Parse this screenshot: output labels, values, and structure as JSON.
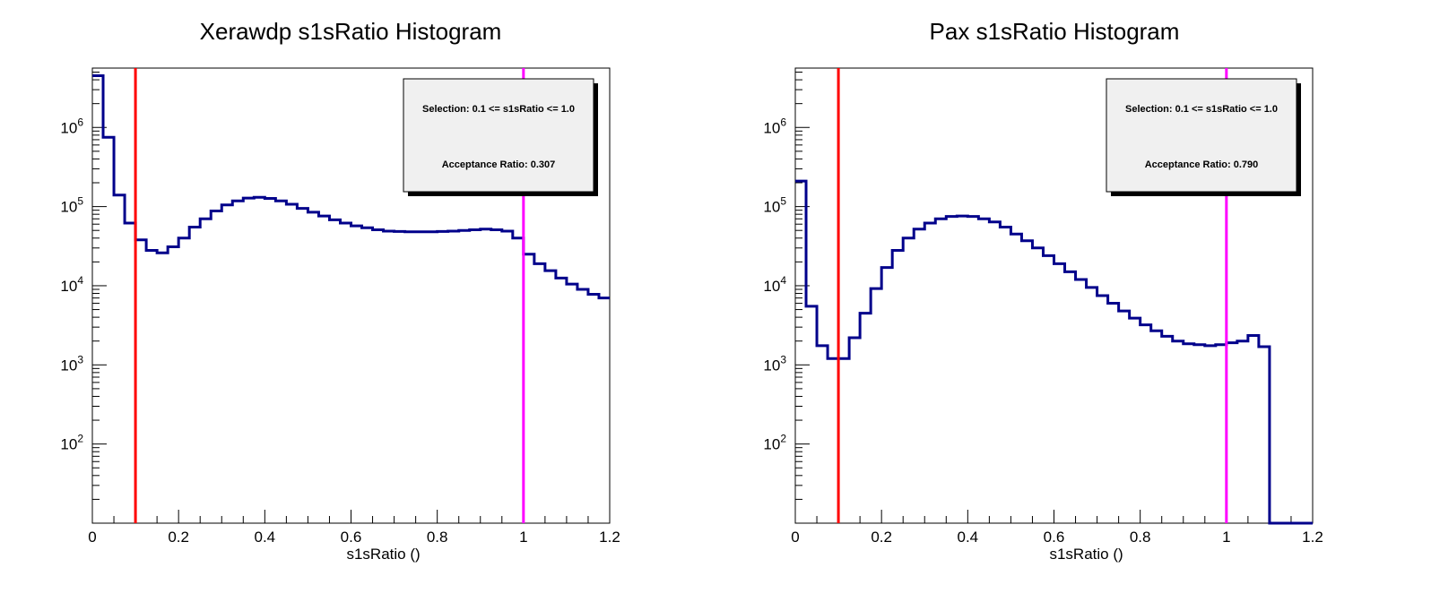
{
  "chart_data": [
    {
      "type": "histogram",
      "title": "Xerawdp s1sRatio Histogram",
      "xlabel": "s1sRatio ()",
      "xlim": [
        0,
        1.2
      ],
      "ylim_log10": [
        1.0,
        6.75
      ],
      "yscale": "log",
      "x_ticks": [
        "0",
        "0.2",
        "0.4",
        "0.6",
        "0.8",
        "1",
        "1.2"
      ],
      "y_ticks": [
        {
          "base": "10",
          "exp": "2",
          "value": 100
        },
        {
          "base": "10",
          "exp": "3",
          "value": 1000
        },
        {
          "base": "10",
          "exp": "4",
          "value": 10000
        },
        {
          "base": "10",
          "exp": "5",
          "value": 100000
        },
        {
          "base": "10",
          "exp": "6",
          "value": 1000000
        }
      ],
      "bin_width": 0.025,
      "values": [
        4500000,
        750000,
        140000,
        62000,
        38000,
        28000,
        26000,
        31000,
        40000,
        55000,
        70000,
        88000,
        105000,
        118000,
        128000,
        131000,
        127000,
        118000,
        107000,
        95000,
        85000,
        76000,
        68000,
        62000,
        57000,
        54000,
        51000,
        49000,
        48500,
        48000,
        48000,
        48000,
        48500,
        49000,
        50000,
        51000,
        52000,
        51000,
        49000,
        40000,
        25000,
        19000,
        15500,
        12500,
        10500,
        9000,
        7800,
        7000
      ],
      "series_color": "#00008b",
      "cut_lines": [
        {
          "x": 0.1,
          "color": "#ff0000"
        },
        {
          "x": 1.0,
          "color": "#ff00ff"
        }
      ],
      "stats_box": {
        "selection": "Selection: 0.1 <= s1sRatio <= 1.0",
        "acceptance": "Acceptance Ratio: 0.307"
      }
    },
    {
      "type": "histogram",
      "title": "Pax s1sRatio Histogram",
      "xlabel": "s1sRatio ()",
      "xlim": [
        0,
        1.2
      ],
      "ylim_log10": [
        1.0,
        6.75
      ],
      "yscale": "log",
      "x_ticks": [
        "0",
        "0.2",
        "0.4",
        "0.6",
        "0.8",
        "1",
        "1.2"
      ],
      "y_ticks": [
        {
          "base": "10",
          "exp": "2",
          "value": 100
        },
        {
          "base": "10",
          "exp": "3",
          "value": 1000
        },
        {
          "base": "10",
          "exp": "4",
          "value": 10000
        },
        {
          "base": "10",
          "exp": "5",
          "value": 100000
        },
        {
          "base": "10",
          "exp": "6",
          "value": 1000000
        }
      ],
      "bin_width": 0.025,
      "values": [
        210000,
        5500,
        1750,
        1200,
        1200,
        2200,
        4500,
        9200,
        17000,
        28000,
        40000,
        52000,
        62000,
        70000,
        75000,
        76000,
        75000,
        70000,
        64000,
        55000,
        45000,
        37000,
        30000,
        24000,
        19000,
        15000,
        12000,
        9500,
        7500,
        6000,
        4800,
        3900,
        3200,
        2700,
        2300,
        2000,
        1850,
        1800,
        1750,
        1800,
        1900,
        2000,
        2350,
        1700,
        10,
        10,
        10,
        10
      ],
      "series_color": "#00008b",
      "cut_lines": [
        {
          "x": 0.1,
          "color": "#ff0000"
        },
        {
          "x": 1.0,
          "color": "#ff00ff"
        }
      ],
      "stats_box": {
        "selection": "Selection: 0.1 <= s1sRatio <= 1.0",
        "acceptance": "Acceptance Ratio: 0.790"
      }
    }
  ]
}
